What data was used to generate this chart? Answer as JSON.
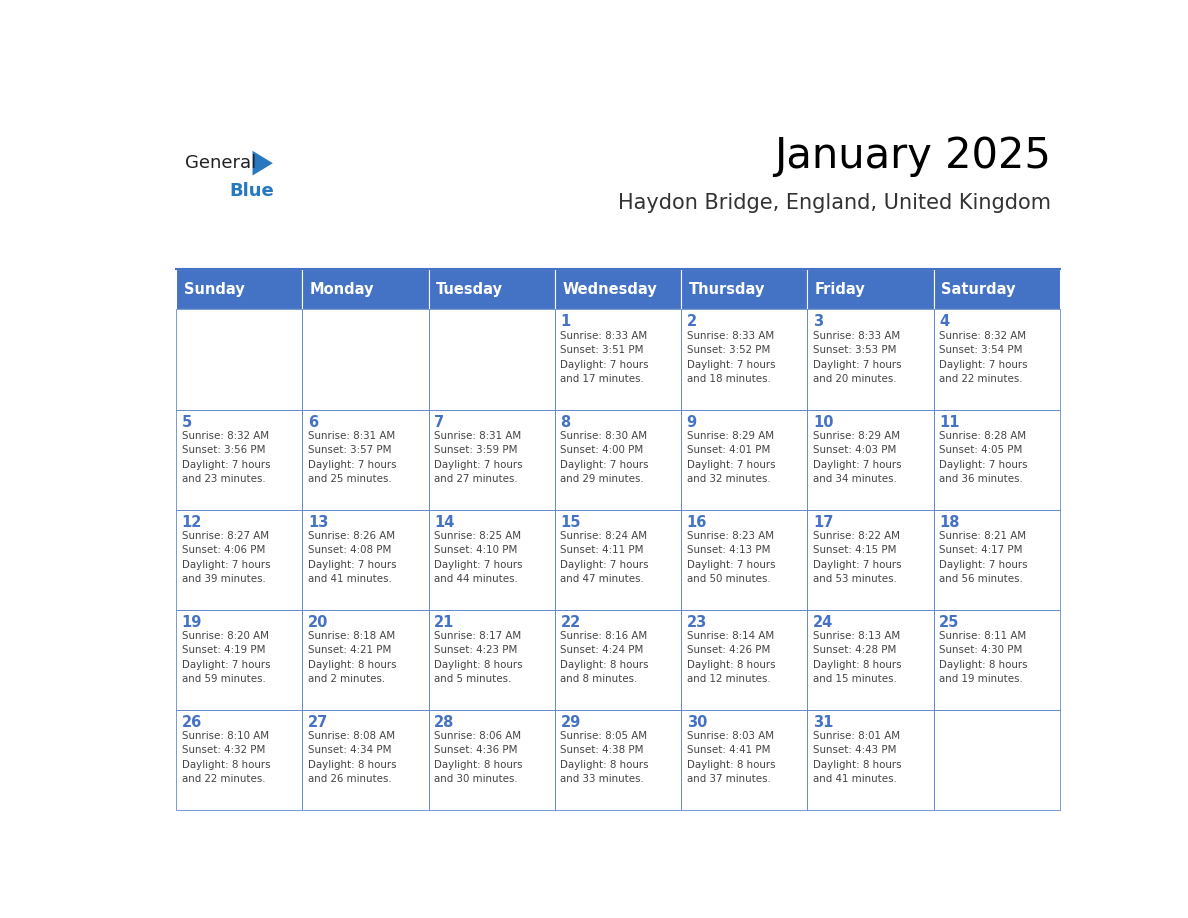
{
  "title": "January 2025",
  "subtitle": "Haydon Bridge, England, United Kingdom",
  "days_of_week": [
    "Sunday",
    "Monday",
    "Tuesday",
    "Wednesday",
    "Thursday",
    "Friday",
    "Saturday"
  ],
  "header_bg": "#4472C4",
  "header_text": "#FFFFFF",
  "cell_border": "#4472C4",
  "day_number_color": "#4472C4",
  "cell_text_color": "#444444",
  "bg_color": "#FFFFFF",
  "title_color": "#000000",
  "subtitle_color": "#333333",
  "logo_general_color": "#222222",
  "logo_blue_color": "#2878C0",
  "weeks": [
    [
      {
        "day": null,
        "info": null
      },
      {
        "day": null,
        "info": null
      },
      {
        "day": null,
        "info": null
      },
      {
        "day": 1,
        "info": "Sunrise: 8:33 AM\nSunset: 3:51 PM\nDaylight: 7 hours\nand 17 minutes."
      },
      {
        "day": 2,
        "info": "Sunrise: 8:33 AM\nSunset: 3:52 PM\nDaylight: 7 hours\nand 18 minutes."
      },
      {
        "day": 3,
        "info": "Sunrise: 8:33 AM\nSunset: 3:53 PM\nDaylight: 7 hours\nand 20 minutes."
      },
      {
        "day": 4,
        "info": "Sunrise: 8:32 AM\nSunset: 3:54 PM\nDaylight: 7 hours\nand 22 minutes."
      }
    ],
    [
      {
        "day": 5,
        "info": "Sunrise: 8:32 AM\nSunset: 3:56 PM\nDaylight: 7 hours\nand 23 minutes."
      },
      {
        "day": 6,
        "info": "Sunrise: 8:31 AM\nSunset: 3:57 PM\nDaylight: 7 hours\nand 25 minutes."
      },
      {
        "day": 7,
        "info": "Sunrise: 8:31 AM\nSunset: 3:59 PM\nDaylight: 7 hours\nand 27 minutes."
      },
      {
        "day": 8,
        "info": "Sunrise: 8:30 AM\nSunset: 4:00 PM\nDaylight: 7 hours\nand 29 minutes."
      },
      {
        "day": 9,
        "info": "Sunrise: 8:29 AM\nSunset: 4:01 PM\nDaylight: 7 hours\nand 32 minutes."
      },
      {
        "day": 10,
        "info": "Sunrise: 8:29 AM\nSunset: 4:03 PM\nDaylight: 7 hours\nand 34 minutes."
      },
      {
        "day": 11,
        "info": "Sunrise: 8:28 AM\nSunset: 4:05 PM\nDaylight: 7 hours\nand 36 minutes."
      }
    ],
    [
      {
        "day": 12,
        "info": "Sunrise: 8:27 AM\nSunset: 4:06 PM\nDaylight: 7 hours\nand 39 minutes."
      },
      {
        "day": 13,
        "info": "Sunrise: 8:26 AM\nSunset: 4:08 PM\nDaylight: 7 hours\nand 41 minutes."
      },
      {
        "day": 14,
        "info": "Sunrise: 8:25 AM\nSunset: 4:10 PM\nDaylight: 7 hours\nand 44 minutes."
      },
      {
        "day": 15,
        "info": "Sunrise: 8:24 AM\nSunset: 4:11 PM\nDaylight: 7 hours\nand 47 minutes."
      },
      {
        "day": 16,
        "info": "Sunrise: 8:23 AM\nSunset: 4:13 PM\nDaylight: 7 hours\nand 50 minutes."
      },
      {
        "day": 17,
        "info": "Sunrise: 8:22 AM\nSunset: 4:15 PM\nDaylight: 7 hours\nand 53 minutes."
      },
      {
        "day": 18,
        "info": "Sunrise: 8:21 AM\nSunset: 4:17 PM\nDaylight: 7 hours\nand 56 minutes."
      }
    ],
    [
      {
        "day": 19,
        "info": "Sunrise: 8:20 AM\nSunset: 4:19 PM\nDaylight: 7 hours\nand 59 minutes."
      },
      {
        "day": 20,
        "info": "Sunrise: 8:18 AM\nSunset: 4:21 PM\nDaylight: 8 hours\nand 2 minutes."
      },
      {
        "day": 21,
        "info": "Sunrise: 8:17 AM\nSunset: 4:23 PM\nDaylight: 8 hours\nand 5 minutes."
      },
      {
        "day": 22,
        "info": "Sunrise: 8:16 AM\nSunset: 4:24 PM\nDaylight: 8 hours\nand 8 minutes."
      },
      {
        "day": 23,
        "info": "Sunrise: 8:14 AM\nSunset: 4:26 PM\nDaylight: 8 hours\nand 12 minutes."
      },
      {
        "day": 24,
        "info": "Sunrise: 8:13 AM\nSunset: 4:28 PM\nDaylight: 8 hours\nand 15 minutes."
      },
      {
        "day": 25,
        "info": "Sunrise: 8:11 AM\nSunset: 4:30 PM\nDaylight: 8 hours\nand 19 minutes."
      }
    ],
    [
      {
        "day": 26,
        "info": "Sunrise: 8:10 AM\nSunset: 4:32 PM\nDaylight: 8 hours\nand 22 minutes."
      },
      {
        "day": 27,
        "info": "Sunrise: 8:08 AM\nSunset: 4:34 PM\nDaylight: 8 hours\nand 26 minutes."
      },
      {
        "day": 28,
        "info": "Sunrise: 8:06 AM\nSunset: 4:36 PM\nDaylight: 8 hours\nand 30 minutes."
      },
      {
        "day": 29,
        "info": "Sunrise: 8:05 AM\nSunset: 4:38 PM\nDaylight: 8 hours\nand 33 minutes."
      },
      {
        "day": 30,
        "info": "Sunrise: 8:03 AM\nSunset: 4:41 PM\nDaylight: 8 hours\nand 37 minutes."
      },
      {
        "day": 31,
        "info": "Sunrise: 8:01 AM\nSunset: 4:43 PM\nDaylight: 8 hours\nand 41 minutes."
      },
      {
        "day": null,
        "info": null
      }
    ]
  ]
}
